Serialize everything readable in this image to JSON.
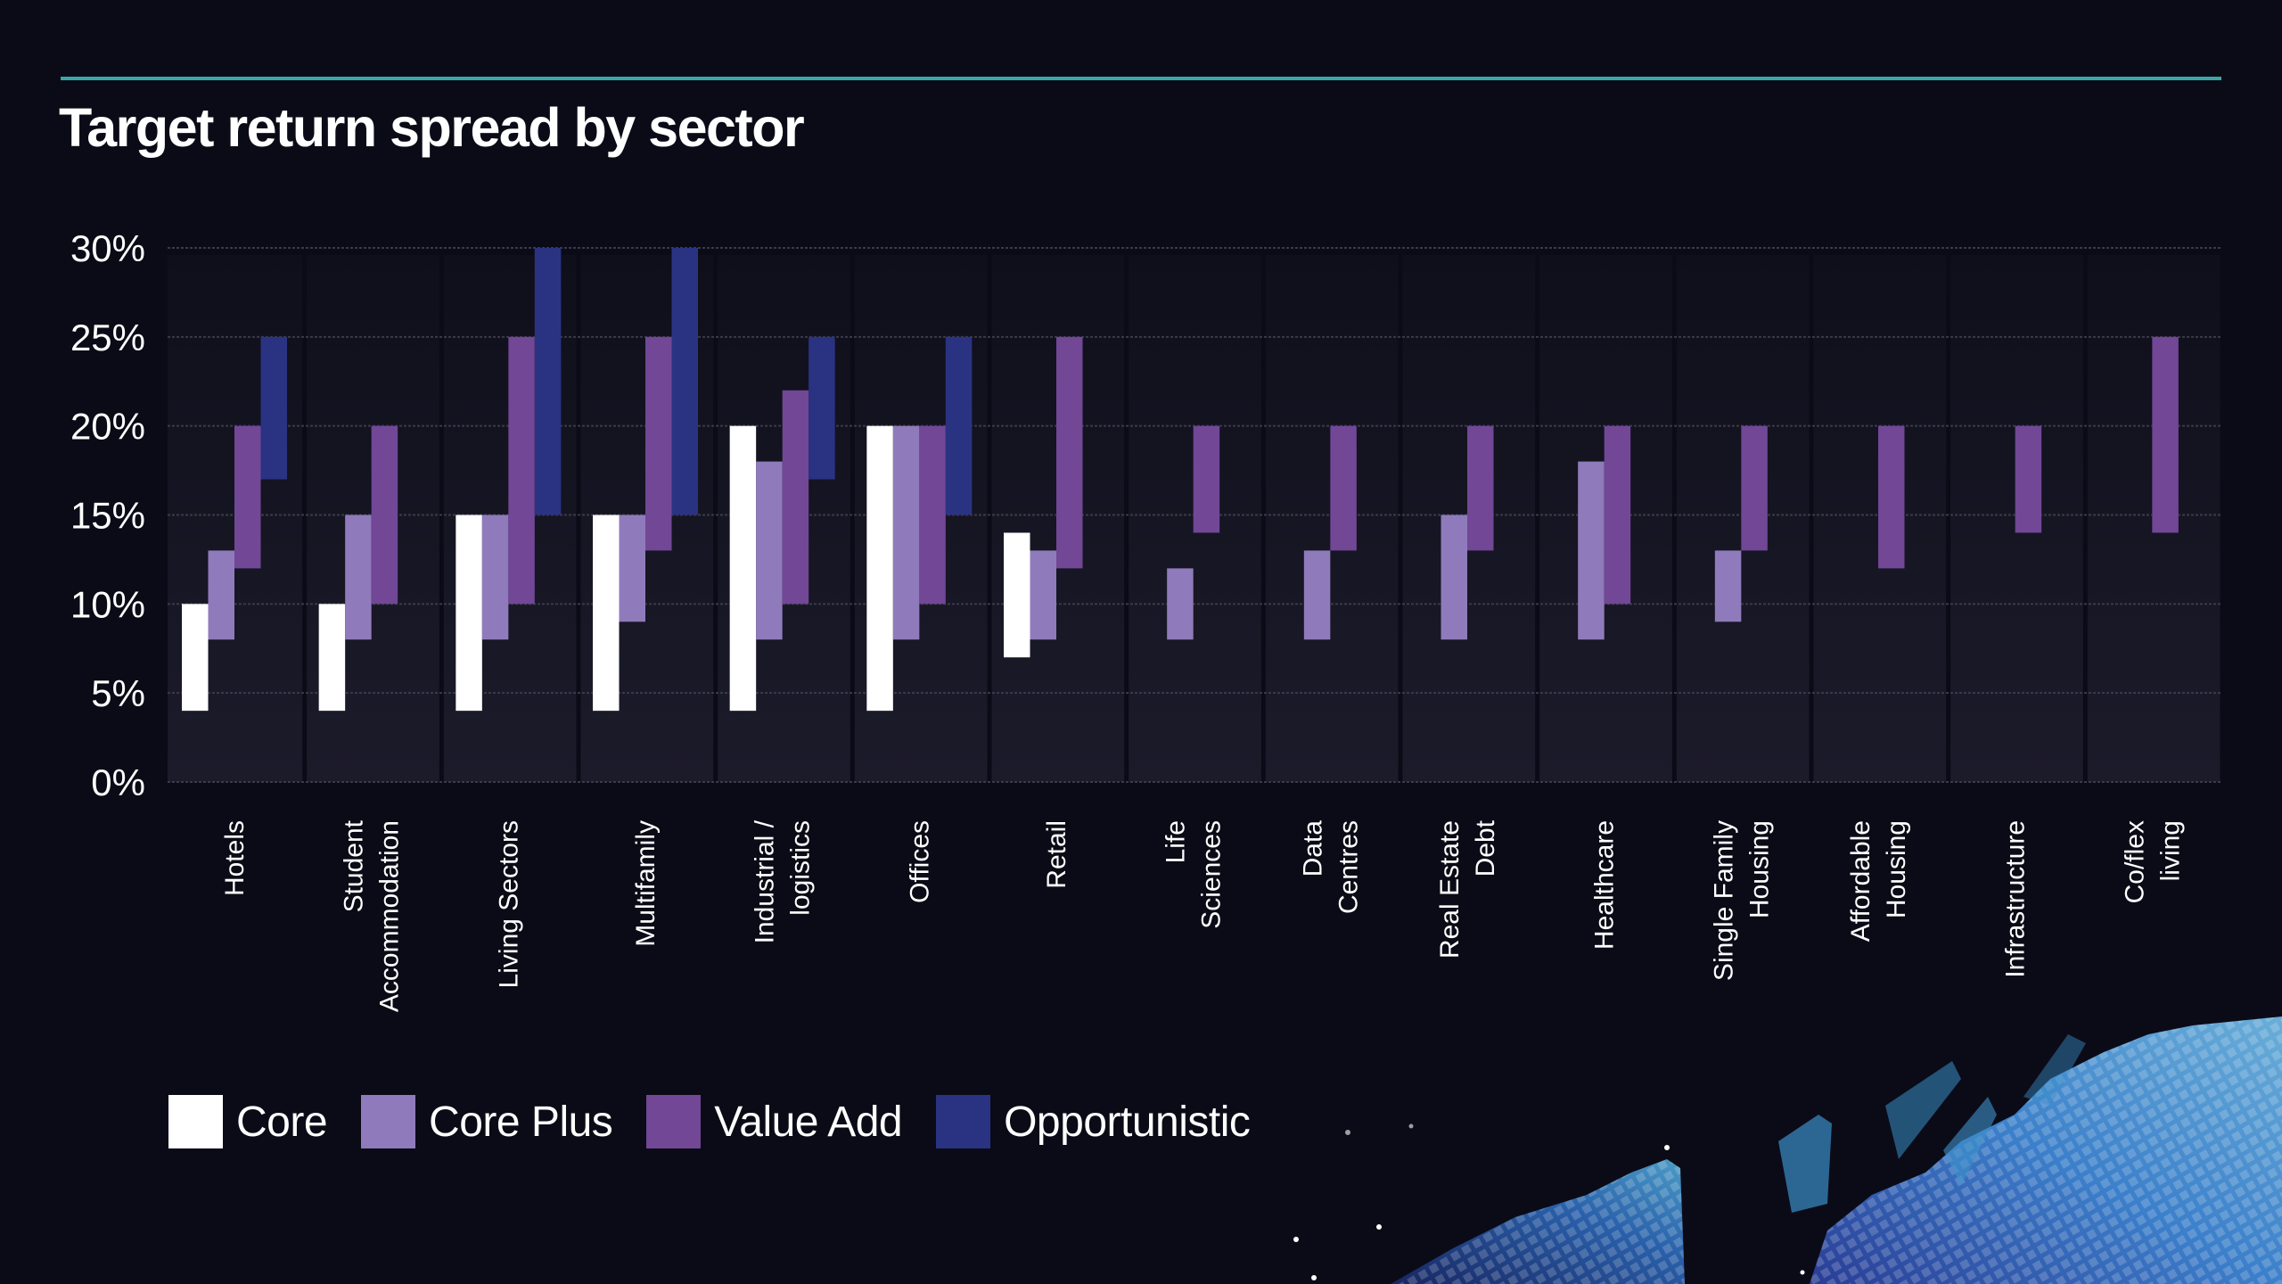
{
  "header": {
    "title": "Target return spread by sector"
  },
  "legend": {
    "items": [
      {
        "label": "Core",
        "color": "#ffffff"
      },
      {
        "label": "Core Plus",
        "color": "#8f7bbb"
      },
      {
        "label": "Value Add",
        "color": "#714796"
      },
      {
        "label": "Opportunistic",
        "color": "#2a3382"
      }
    ]
  },
  "chart_data": {
    "type": "bar",
    "subtype": "floating-range",
    "title": "Target return spread by sector",
    "xlabel": "",
    "ylabel": "",
    "ylim": [
      0,
      30
    ],
    "yticks": [
      "0%",
      "5%",
      "10%",
      "15%",
      "20%",
      "25%",
      "30%"
    ],
    "ytick_values": [
      0,
      5,
      10,
      15,
      20,
      25,
      30
    ],
    "grid": true,
    "legend_position": "bottom-left",
    "categories": [
      [
        "Hotels"
      ],
      [
        "Student",
        "Accommodation"
      ],
      [
        "Living Sectors"
      ],
      [
        "Multifamily"
      ],
      [
        "Industrial /",
        "logistics"
      ],
      [
        "Offices"
      ],
      [
        "Retail"
      ],
      [
        "Life",
        "Sciences"
      ],
      [
        "Data",
        "Centres"
      ],
      [
        "Real Estate",
        "Debt"
      ],
      [
        "Healthcare"
      ],
      [
        "Single Family",
        "Housing"
      ],
      [
        "Affordable",
        "Housing"
      ],
      [
        "Infrastructure"
      ],
      [
        "Co/flex",
        "living"
      ]
    ],
    "series": [
      {
        "name": "Core",
        "color": "#ffffff",
        "ranges": [
          [
            4,
            10
          ],
          [
            4,
            10
          ],
          [
            4,
            15
          ],
          [
            4,
            15
          ],
          [
            4,
            20
          ],
          [
            4,
            20
          ],
          [
            7,
            14
          ],
          null,
          null,
          null,
          null,
          null,
          null,
          null,
          null
        ]
      },
      {
        "name": "Core Plus",
        "color": "#8f7bbb",
        "ranges": [
          [
            8,
            13
          ],
          [
            8,
            15
          ],
          [
            8,
            15
          ],
          [
            9,
            15
          ],
          [
            8,
            18
          ],
          [
            8,
            20
          ],
          [
            8,
            13
          ],
          [
            8,
            12
          ],
          [
            8,
            13
          ],
          [
            8,
            15
          ],
          [
            8,
            18
          ],
          [
            9,
            13
          ],
          null,
          null,
          null
        ]
      },
      {
        "name": "Value Add",
        "color": "#714796",
        "ranges": [
          [
            12,
            20
          ],
          [
            10,
            20
          ],
          [
            10,
            25
          ],
          [
            13,
            25
          ],
          [
            10,
            22
          ],
          [
            10,
            20
          ],
          [
            12,
            25
          ],
          [
            14,
            20
          ],
          [
            13,
            20
          ],
          [
            13,
            20
          ],
          [
            10,
            20
          ],
          [
            13,
            20
          ],
          [
            12,
            20
          ],
          [
            14,
            20
          ],
          [
            14,
            25
          ]
        ]
      },
      {
        "name": "Opportunistic",
        "color": "#2a3382",
        "ranges": [
          [
            17,
            25
          ],
          null,
          [
            15,
            30
          ],
          [
            15,
            30
          ],
          [
            17,
            25
          ],
          [
            15,
            25
          ],
          null,
          null,
          null,
          null,
          null,
          null,
          null,
          null,
          null
        ]
      }
    ]
  }
}
